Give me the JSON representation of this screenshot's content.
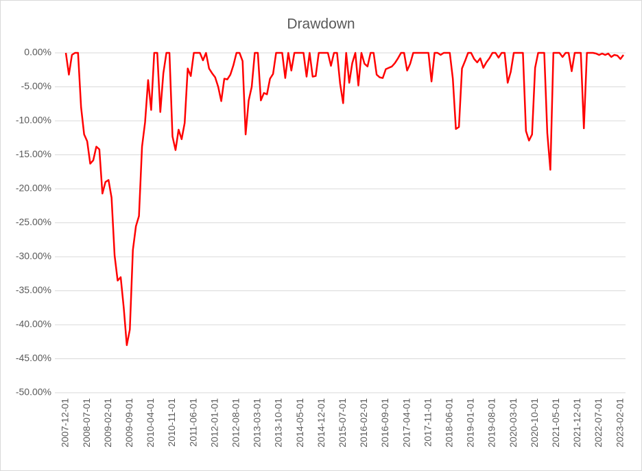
{
  "chart_data": {
    "type": "line",
    "title": "Drawdown",
    "categories": [
      "2007-12-01",
      null,
      null,
      null,
      null,
      null,
      null,
      "2008-07-01",
      null,
      null,
      null,
      null,
      null,
      null,
      "2009-02-01",
      null,
      null,
      null,
      null,
      null,
      null,
      "2009-09-01",
      null,
      null,
      null,
      null,
      null,
      null,
      "2010-04-01",
      null,
      null,
      null,
      null,
      null,
      null,
      "2010-11-01",
      null,
      null,
      null,
      null,
      null,
      null,
      "2011-06-01",
      null,
      null,
      null,
      null,
      null,
      null,
      "2012-01-01",
      null,
      null,
      null,
      null,
      null,
      null,
      "2012-08-01",
      null,
      null,
      null,
      null,
      null,
      null,
      "2013-03-01",
      null,
      null,
      null,
      null,
      null,
      null,
      "2013-10-01",
      null,
      null,
      null,
      null,
      null,
      null,
      "2014-05-01",
      null,
      null,
      null,
      null,
      null,
      null,
      "2014-12-01",
      null,
      null,
      null,
      null,
      null,
      null,
      "2015-07-01",
      null,
      null,
      null,
      null,
      null,
      null,
      "2016-02-01",
      null,
      null,
      null,
      null,
      null,
      null,
      "2016-09-01",
      null,
      null,
      null,
      null,
      null,
      null,
      "2017-04-01",
      null,
      null,
      null,
      null,
      null,
      null,
      "2017-11-01",
      null,
      null,
      null,
      null,
      null,
      null,
      "2018-06-01",
      null,
      null,
      null,
      null,
      null,
      null,
      "2019-01-01",
      null,
      null,
      null,
      null,
      null,
      null,
      "2019-08-01",
      null,
      null,
      null,
      null,
      null,
      null,
      "2020-03-01",
      null,
      null,
      null,
      null,
      null,
      null,
      "2020-10-01",
      null,
      null,
      null,
      null,
      null,
      null,
      "2021-05-01",
      null,
      null,
      null,
      null,
      null,
      null,
      "2021-12-01",
      null,
      null,
      null,
      null,
      null,
      null,
      "2022-07-01",
      null,
      null,
      null,
      null,
      null,
      null,
      "2023-02-01",
      null
    ],
    "values": [
      0,
      -3.2,
      -0.3,
      0,
      0,
      -8,
      -12,
      -13,
      -16.3,
      -15.8,
      -13.8,
      -14.2,
      -20.7,
      -19,
      -18.7,
      -21.3,
      -29.8,
      -33.5,
      -33,
      -37.5,
      -43,
      -40.7,
      -29,
      -25.5,
      -24,
      -13.8,
      -10.2,
      -4,
      -8.4,
      0,
      0,
      -8.7,
      -3,
      0,
      0,
      -12.3,
      -14.3,
      -11.3,
      -12.7,
      -10.3,
      -2.3,
      -3.4,
      0,
      0,
      0,
      -1.1,
      0,
      -2.3,
      -3,
      -3.6,
      -5,
      -7.1,
      -3.8,
      -3.9,
      -3.2,
      -1.8,
      0,
      0,
      -1.2,
      -12,
      -7,
      -5,
      0,
      0,
      -7,
      -5.9,
      -6.1,
      -3.8,
      -3.1,
      0,
      0,
      0,
      -3.7,
      0,
      -2.6,
      0,
      0,
      0,
      0,
      -3.5,
      0,
      -3.5,
      -3.4,
      0,
      0,
      0,
      0,
      -1.9,
      0,
      0,
      -4.5,
      -7.4,
      0,
      -4.4,
      -1.5,
      0,
      -4.8,
      0,
      -1.6,
      -2,
      0,
      0,
      -3.2,
      -3.6,
      -3.7,
      -2.4,
      -2.2,
      -2,
      -1.5,
      -0.8,
      0,
      0,
      -2.6,
      -1.6,
      0,
      0,
      0,
      0,
      0,
      0,
      -4.2,
      0,
      0,
      -0.3,
      0,
      0,
      0,
      -3.8,
      -11.2,
      -10.9,
      -2.3,
      -1.2,
      0,
      0,
      -0.9,
      -1.4,
      -0.8,
      -2.2,
      -1.4,
      -0.8,
      0,
      0,
      -0.7,
      0,
      0,
      -4.4,
      -2.8,
      0,
      0,
      0,
      0,
      -11.5,
      -12.9,
      -12,
      -2.2,
      0,
      0,
      0,
      -11.8,
      -17.2,
      0,
      0,
      0,
      -0.6,
      0,
      0,
      -2.7,
      0,
      0,
      0,
      -11.1,
      0,
      0,
      0,
      -0.1,
      -0.3,
      -0.1,
      -0.3,
      -0.1,
      -0.6,
      -0.3,
      -0.4,
      -0.9,
      -0.3
    ],
    "color": "#ff0000",
    "ylim": [
      -50,
      0
    ],
    "yticks": [
      {
        "value": 0,
        "label": "0.00%"
      },
      {
        "value": -5,
        "label": "-5.00%"
      },
      {
        "value": -10,
        "label": "-10.00%"
      },
      {
        "value": -15,
        "label": "-15.00%"
      },
      {
        "value": -20,
        "label": "-20.00%"
      },
      {
        "value": -25,
        "label": "-25.00%"
      },
      {
        "value": -30,
        "label": "-30.00%"
      },
      {
        "value": -35,
        "label": "-35.00%"
      },
      {
        "value": -40,
        "label": "-40.00%"
      },
      {
        "value": -45,
        "label": "-45.00%"
      },
      {
        "value": -50,
        "label": "-50.00%"
      }
    ],
    "grid": true
  }
}
